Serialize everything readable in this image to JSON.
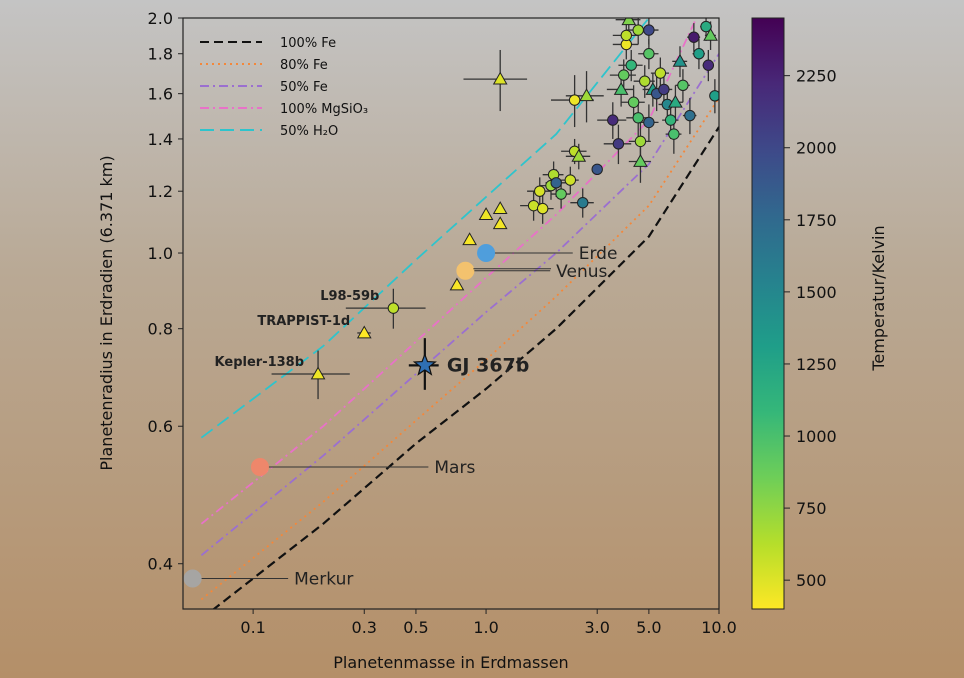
{
  "chart_data": {
    "type": "scatter",
    "title": "",
    "xlabel": "Planetenmasse in Erdmassen",
    "ylabel": "Planetenradius in Erdradien (6.371 km)",
    "x_scale": "log",
    "y_scale": "log",
    "xlim": [
      0.05,
      10.0
    ],
    "ylim": [
      0.35,
      2.0
    ],
    "x_ticks": [
      {
        "value": 0.1,
        "label": "0.1"
      },
      {
        "value": 0.3,
        "label": "0.3"
      },
      {
        "value": 0.5,
        "label": "0.5"
      },
      {
        "value": 1.0,
        "label": "1.0"
      },
      {
        "value": 3.0,
        "label": "3.0"
      },
      {
        "value": 5.0,
        "label": "5.0"
      },
      {
        "value": 10.0,
        "label": "10.0"
      }
    ],
    "y_ticks": [
      {
        "value": 0.4,
        "label": "0.4"
      },
      {
        "value": 0.6,
        "label": "0.6"
      },
      {
        "value": 0.8,
        "label": "0.8"
      },
      {
        "value": 1.0,
        "label": "1.0"
      },
      {
        "value": 1.2,
        "label": "1.2"
      },
      {
        "value": 1.4,
        "label": "1.4"
      },
      {
        "value": 1.6,
        "label": "1.6"
      },
      {
        "value": 1.8,
        "label": "1.8"
      },
      {
        "value": 2.0,
        "label": "2.0"
      }
    ],
    "legend_position": "top-left",
    "composition_curves": [
      {
        "name": "100% Fe",
        "color": "#111111",
        "dash": "dash",
        "points": [
          [
            0.06,
            0.34
          ],
          [
            0.2,
            0.45
          ],
          [
            0.5,
            0.57
          ],
          [
            1.0,
            0.67
          ],
          [
            2.0,
            0.8
          ],
          [
            5.0,
            1.05
          ],
          [
            10.0,
            1.45
          ]
        ]
      },
      {
        "name": "80% Fe",
        "color": "#f4873a",
        "dash": "dot",
        "points": [
          [
            0.06,
            0.36
          ],
          [
            0.2,
            0.48
          ],
          [
            0.5,
            0.61
          ],
          [
            1.0,
            0.73
          ],
          [
            2.0,
            0.88
          ],
          [
            5.0,
            1.15
          ],
          [
            10.0,
            1.58
          ]
        ]
      },
      {
        "name": "50% Fe",
        "color": "#9b6fd0",
        "dash": "dashdot",
        "points": [
          [
            0.06,
            0.41
          ],
          [
            0.2,
            0.55
          ],
          [
            0.5,
            0.7
          ],
          [
            1.0,
            0.84
          ],
          [
            2.0,
            1.0
          ],
          [
            5.0,
            1.3
          ],
          [
            10.0,
            1.8
          ]
        ]
      },
      {
        "name": "100% MgSiO₃",
        "color": "#e872c8",
        "dash": "dashdot",
        "points": [
          [
            0.06,
            0.45
          ],
          [
            0.2,
            0.6
          ],
          [
            0.5,
            0.77
          ],
          [
            1.0,
            0.93
          ],
          [
            2.0,
            1.12
          ],
          [
            5.0,
            1.48
          ],
          [
            8.0,
            2.0
          ]
        ]
      },
      {
        "name": "50% H₂O",
        "color": "#2ec4cc",
        "dash": "longdash",
        "points": [
          [
            0.06,
            0.58
          ],
          [
            0.2,
            0.76
          ],
          [
            0.5,
            0.98
          ],
          [
            1.0,
            1.18
          ],
          [
            2.0,
            1.42
          ],
          [
            5.0,
            2.0
          ]
        ]
      }
    ],
    "solar_system": [
      {
        "name": "Merkur",
        "mass": 0.055,
        "radius": 0.383,
        "color": "#a6a6a6",
        "label_mass": 0.15,
        "label_radius": 0.383
      },
      {
        "name": "Mars",
        "mass": 0.107,
        "radius": 0.532,
        "color": "#f2866a",
        "label_mass": 0.6,
        "label_radius": 0.532
      },
      {
        "name": "Venus",
        "mass": 0.815,
        "radius": 0.949,
        "color": "#f7c46c",
        "label_mass": 2.0,
        "label_radius": 0.949
      },
      {
        "name": "Erde",
        "mass": 1.0,
        "radius": 1.0,
        "color": "#4a9ee0",
        "label_mass": 2.5,
        "label_radius": 1.0
      }
    ],
    "highlight": {
      "name": "GJ 367b",
      "mass": 0.546,
      "radius": 0.718,
      "mass_err": 0.08,
      "radius_err_up": 0.06,
      "radius_err_down": 0.05,
      "color": "#2f6fb4"
    },
    "named_planets": [
      {
        "name": "L98-59b",
        "mass": 0.4,
        "radius": 0.85,
        "temp": 600,
        "marker": "circle",
        "xerr": 0.15,
        "yerr": 0.05
      },
      {
        "name": "TRAPPIST-1d",
        "mass": 0.3,
        "radius": 0.79,
        "temp": 290,
        "marker": "triangle",
        "xerr": 0.02,
        "yerr": 0.01
      },
      {
        "name": "Kepler-138b",
        "mass": 0.19,
        "radius": 0.7,
        "temp": 450,
        "marker": "triangle",
        "xerr": 0.07,
        "yerr": 0.05
      }
    ],
    "planets": [
      {
        "mass": 1.15,
        "radius": 1.67,
        "temp": 500,
        "marker": "triangle",
        "xerr": 0.35,
        "yerr": 0.15
      },
      {
        "mass": 0.75,
        "radius": 0.91,
        "temp": 420,
        "marker": "triangle"
      },
      {
        "mass": 0.85,
        "radius": 1.04,
        "temp": 420,
        "marker": "triangle"
      },
      {
        "mass": 1.0,
        "radius": 1.12,
        "temp": 450,
        "marker": "triangle"
      },
      {
        "mass": 1.15,
        "radius": 1.09,
        "temp": 430,
        "marker": "triangle"
      },
      {
        "mass": 1.15,
        "radius": 1.14,
        "temp": 470,
        "marker": "triangle"
      },
      {
        "mass": 1.6,
        "radius": 1.15,
        "temp": 560,
        "marker": "circle",
        "xerr": 0.2,
        "yerr": 0.05
      },
      {
        "mass": 1.7,
        "radius": 1.2,
        "temp": 520,
        "marker": "circle",
        "xerr": 0.2,
        "yerr": 0.05
      },
      {
        "mass": 1.75,
        "radius": 1.14,
        "temp": 500,
        "marker": "circle",
        "xerr": 0.2,
        "yerr": 0.05
      },
      {
        "mass": 1.9,
        "radius": 1.22,
        "temp": 700,
        "marker": "circle",
        "xerr": 0.2,
        "yerr": 0.05
      },
      {
        "mass": 1.95,
        "radius": 1.26,
        "temp": 650,
        "marker": "circle",
        "xerr": 0.2,
        "yerr": 0.05
      },
      {
        "mass": 2.0,
        "radius": 1.23,
        "temp": 1800,
        "marker": "circle",
        "xerr": 0.2,
        "yerr": 0.05
      },
      {
        "mass": 2.1,
        "radius": 1.19,
        "temp": 900,
        "marker": "circle",
        "xerr": 0.2,
        "yerr": 0.05
      },
      {
        "mass": 2.3,
        "radius": 1.24,
        "temp": 550,
        "marker": "circle",
        "xerr": 0.2,
        "yerr": 0.05
      },
      {
        "mass": 2.4,
        "radius": 1.35,
        "temp": 600,
        "marker": "circle",
        "xerr": 0.3,
        "yerr": 0.05
      },
      {
        "mass": 2.5,
        "radius": 1.33,
        "temp": 700,
        "marker": "triangle",
        "xerr": 0.3,
        "yerr": 0.05
      },
      {
        "mass": 2.6,
        "radius": 1.16,
        "temp": 1600,
        "marker": "circle",
        "xerr": 0.3,
        "yerr": 0.05
      },
      {
        "mass": 2.4,
        "radius": 1.57,
        "temp": 450,
        "marker": "circle",
        "xerr": 0.5,
        "yerr": 0.12
      },
      {
        "mass": 2.7,
        "radius": 1.59,
        "temp": 700,
        "marker": "triangle",
        "xerr": 0.5,
        "yerr": 0.12
      },
      {
        "mass": 3.0,
        "radius": 1.28,
        "temp": 1900,
        "marker": "circle"
      },
      {
        "mass": 3.5,
        "radius": 1.48,
        "temp": 2200,
        "marker": "circle",
        "xerr": 0.5,
        "yerr": 0.08
      },
      {
        "mass": 3.7,
        "radius": 1.38,
        "temp": 2100,
        "marker": "circle",
        "xerr": 0.5,
        "yerr": 0.08
      },
      {
        "mass": 3.8,
        "radius": 1.62,
        "temp": 1000,
        "marker": "triangle",
        "xerr": 0.5,
        "yerr": 0.08
      },
      {
        "mass": 3.9,
        "radius": 1.69,
        "temp": 900,
        "marker": "circle",
        "xerr": 0.5,
        "yerr": 0.08
      },
      {
        "mass": 4.0,
        "radius": 1.85,
        "temp": 450,
        "marker": "circle",
        "xerr": 0.5,
        "yerr": 0.08
      },
      {
        "mass": 4.0,
        "radius": 1.9,
        "temp": 600,
        "marker": "circle",
        "xerr": 0.5,
        "yerr": 0.08
      },
      {
        "mass": 4.1,
        "radius": 1.99,
        "temp": 800,
        "marker": "triangle",
        "xerr": 0.5,
        "yerr": 0.08
      },
      {
        "mass": 4.2,
        "radius": 1.74,
        "temp": 1100,
        "marker": "circle",
        "xerr": 0.5,
        "yerr": 0.08
      },
      {
        "mass": 4.3,
        "radius": 1.56,
        "temp": 900,
        "marker": "circle",
        "xerr": 0.5,
        "yerr": 0.08
      },
      {
        "mass": 4.5,
        "radius": 1.93,
        "temp": 700,
        "marker": "circle",
        "xerr": 0.5,
        "yerr": 0.08
      },
      {
        "mass": 4.5,
        "radius": 1.49,
        "temp": 1000,
        "marker": "circle",
        "xerr": 0.5,
        "yerr": 0.08
      },
      {
        "mass": 4.6,
        "radius": 1.39,
        "temp": 700,
        "marker": "circle",
        "xerr": 0.5,
        "yerr": 0.08
      },
      {
        "mass": 4.6,
        "radius": 1.31,
        "temp": 900,
        "marker": "triangle",
        "xerr": 0.5,
        "yerr": 0.08
      },
      {
        "mass": 4.8,
        "radius": 1.66,
        "temp": 650,
        "marker": "circle",
        "xerr": 0.5,
        "yerr": 0.08
      },
      {
        "mass": 5.0,
        "radius": 1.8,
        "temp": 950,
        "marker": "circle",
        "xerr": 0.5,
        "yerr": 0.08
      },
      {
        "mass": 5.0,
        "radius": 1.47,
        "temp": 1800,
        "marker": "circle",
        "xerr": 0.5,
        "yerr": 0.08
      },
      {
        "mass": 5.2,
        "radius": 1.62,
        "temp": 1300,
        "marker": "triangle",
        "xerr": 0.5,
        "yerr": 0.08
      },
      {
        "mass": 5.4,
        "radius": 1.6,
        "temp": 1900,
        "marker": "circle",
        "xerr": 0.5,
        "yerr": 0.08
      },
      {
        "mass": 5.6,
        "radius": 1.7,
        "temp": 600,
        "marker": "circle",
        "xerr": 0.5,
        "yerr": 0.08
      },
      {
        "mass": 5.8,
        "radius": 1.62,
        "temp": 2100,
        "marker": "circle",
        "xerr": 0.5,
        "yerr": 0.08
      },
      {
        "mass": 6.0,
        "radius": 1.55,
        "temp": 1500,
        "marker": "circle",
        "xerr": 0.5,
        "yerr": 0.08
      },
      {
        "mass": 6.2,
        "radius": 1.48,
        "temp": 1100,
        "marker": "circle",
        "xerr": 0.5,
        "yerr": 0.08
      },
      {
        "mass": 6.4,
        "radius": 1.42,
        "temp": 1000,
        "marker": "circle",
        "xerr": 0.5,
        "yerr": 0.08
      },
      {
        "mass": 6.5,
        "radius": 1.56,
        "temp": 1200,
        "marker": "triangle",
        "xerr": 0.5,
        "yerr": 0.08
      },
      {
        "mass": 7.0,
        "radius": 1.64,
        "temp": 950,
        "marker": "circle",
        "xerr": 0.5,
        "yerr": 0.08
      },
      {
        "mass": 7.5,
        "radius": 1.5,
        "temp": 1700,
        "marker": "circle",
        "xerr": 0.5,
        "yerr": 0.08
      },
      {
        "mass": 7.8,
        "radius": 1.89,
        "temp": 2300,
        "marker": "circle",
        "xerr": 0.5,
        "yerr": 0.08
      },
      {
        "mass": 8.2,
        "radius": 1.8,
        "temp": 1300,
        "marker": "circle",
        "xerr": 0.5,
        "yerr": 0.08
      },
      {
        "mass": 8.8,
        "radius": 1.95,
        "temp": 1200,
        "marker": "circle",
        "xerr": 0.5,
        "yerr": 0.08
      },
      {
        "mass": 9.0,
        "radius": 1.74,
        "temp": 2200,
        "marker": "circle",
        "xerr": 0.5,
        "yerr": 0.08
      },
      {
        "mass": 9.2,
        "radius": 1.9,
        "temp": 900,
        "marker": "triangle",
        "xerr": 0.5,
        "yerr": 0.08
      },
      {
        "mass": 9.6,
        "radius": 1.59,
        "temp": 1300,
        "marker": "circle",
        "xerr": 0.5,
        "yerr": 0.08
      },
      {
        "mass": 5.0,
        "radius": 1.93,
        "temp": 2000,
        "marker": "circle",
        "xerr": 0.5,
        "yerr": 0.08
      },
      {
        "mass": 6.8,
        "radius": 1.76,
        "temp": 1400,
        "marker": "triangle",
        "xerr": 0.5,
        "yerr": 0.08
      }
    ],
    "colorbar": {
      "label": "Temperatur/Kelvin",
      "min": 400,
      "max": 2450,
      "ticks": [
        {
          "value": 500,
          "label": "500"
        },
        {
          "value": 750,
          "label": "750"
        },
        {
          "value": 1000,
          "label": "1000"
        },
        {
          "value": 1250,
          "label": "1250"
        },
        {
          "value": 1500,
          "label": "1500"
        },
        {
          "value": 1750,
          "label": "1750"
        },
        {
          "value": 2000,
          "label": "2000"
        },
        {
          "value": 2250,
          "label": "2250"
        }
      ],
      "colors": [
        "#fde725",
        "#b5de2b",
        "#6ece58",
        "#35b779",
        "#1f9e89",
        "#26828e",
        "#31688e",
        "#3e4989",
        "#482878",
        "#440154"
      ]
    }
  }
}
